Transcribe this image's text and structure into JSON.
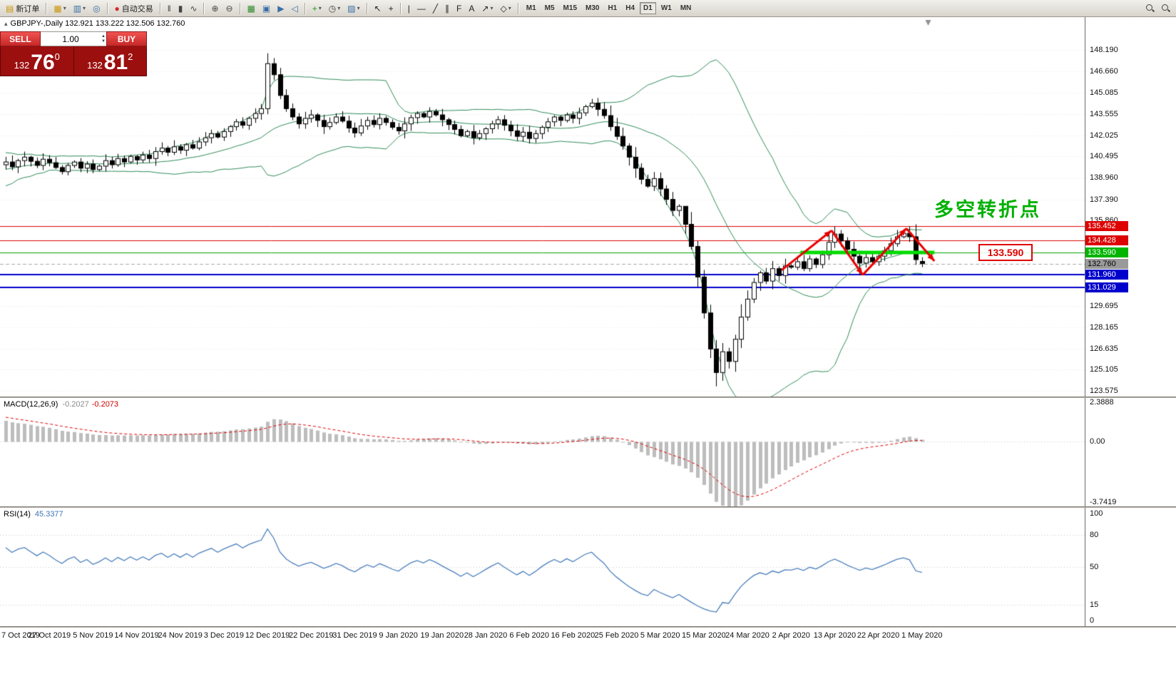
{
  "toolbar": {
    "caret_glyph": "▾",
    "groups": [
      {
        "items": [
          {
            "name": "new-order-button",
            "glyph": "▤",
            "color": "#c8960c",
            "label": "新订单"
          }
        ]
      },
      {
        "items": [
          {
            "name": "new-chart-icon",
            "glyph": "▦",
            "color": "#c8960c",
            "caret": true
          },
          {
            "name": "profiles-icon",
            "glyph": "▥",
            "color": "#3a6ea5",
            "caret": true
          },
          {
            "name": "refresh-icon",
            "glyph": "◎",
            "color": "#3a6ea5"
          }
        ]
      },
      {
        "items": [
          {
            "name": "autotrading-button",
            "glyph": "●",
            "color": "#d42a2a",
            "label": "自动交易"
          }
        ]
      },
      {
        "items": [
          {
            "name": "bar-chart-icon",
            "glyph": "‖",
            "color": "#444444"
          },
          {
            "name": "candlestick-chart-icon",
            "glyph": "▮",
            "color": "#444444"
          },
          {
            "name": "line-chart-icon",
            "glyph": "∿",
            "color": "#444444"
          }
        ]
      },
      {
        "items": [
          {
            "name": "zoom-in-icon",
            "glyph": "⊕",
            "color": "#444444"
          },
          {
            "name": "zoom-out-icon",
            "glyph": "⊖",
            "color": "#444444"
          }
        ]
      },
      {
        "items": [
          {
            "name": "grid-icon",
            "glyph": "▦",
            "color": "#2e8b2e"
          },
          {
            "name": "tile-windows-icon",
            "glyph": "▣",
            "color": "#3a6ea5"
          },
          {
            "name": "auto-scroll-icon",
            "glyph": "▶",
            "color": "#3a6ea5"
          },
          {
            "name": "chart-shift-icon",
            "glyph": "◁",
            "color": "#3a6ea5"
          }
        ]
      },
      {
        "items": [
          {
            "name": "indicators-icon",
            "glyph": "+",
            "color": "#1d9e1d",
            "caret": true
          },
          {
            "name": "periods-icon",
            "glyph": "◷",
            "color": "#444444",
            "caret": true
          },
          {
            "name": "templates-icon",
            "glyph": "▨",
            "color": "#3a6ea5",
            "caret": true
          }
        ]
      },
      {
        "items": [
          {
            "name": "cursor-icon",
            "glyph": "↖",
            "color": "#222222"
          },
          {
            "name": "crosshair-icon",
            "glyph": "+",
            "color": "#222222"
          }
        ]
      },
      {
        "items": [
          {
            "name": "vertical-line-icon",
            "glyph": "|",
            "color": "#222222"
          },
          {
            "name": "horizontal-line-icon",
            "glyph": "—",
            "color": "#222222"
          },
          {
            "name": "trendline-icon",
            "glyph": "╱",
            "color": "#222222"
          },
          {
            "name": "channel-icon",
            "glyph": "∥",
            "color": "#222222"
          },
          {
            "name": "fibonacci-icon",
            "glyph": "F",
            "color": "#222222"
          },
          {
            "name": "text-icon",
            "glyph": "A",
            "color": "#222222"
          },
          {
            "name": "arrows-icon",
            "glyph": "↗",
            "color": "#222222",
            "caret": true
          },
          {
            "name": "shapes-icon",
            "glyph": "◇",
            "color": "#222222",
            "caret": true
          }
        ]
      }
    ],
    "timeframes": [
      "M1",
      "M5",
      "M15",
      "M30",
      "H1",
      "H4",
      "D1",
      "W1",
      "MN"
    ],
    "active_timeframe": "D1",
    "right_icons": [
      "search-chart-button",
      "search-symbol-button"
    ]
  },
  "trade_panel": {
    "sell_label": "SELL",
    "buy_label": "BUY",
    "volume": "1.00",
    "spin_up_glyph": "▲",
    "spin_down_glyph": "▼",
    "sell_price": {
      "prefix": "132",
      "big": "76",
      "sup": "0"
    },
    "buy_price": {
      "prefix": "132",
      "big": "81",
      "sup": "2"
    }
  },
  "chart": {
    "symbol_marker": "▴",
    "title_line": "GBPJPY-,Daily  132.921 133.222 132.506 132.760",
    "annotation": "多空转折点",
    "callout": "133.590"
  },
  "macd_panel": {
    "name": "MACD(12,26,9)",
    "value_main": "-0.2027",
    "value_signal": "-0.2073",
    "range": [
      -3.7419,
      2.3888
    ],
    "axis_labels": [
      {
        "v": 2.3888,
        "t": "2.3888"
      },
      {
        "v": 0,
        "t": "0.00"
      },
      {
        "v": -3.7419,
        "t": "-3.7419"
      }
    ],
    "histogram_color": "#bdbdbd",
    "signal_color": "#dd0000"
  },
  "rsi_panel": {
    "name": "RSI(14)",
    "value": "45.3377",
    "axis_labels": [
      {
        "v": 100,
        "t": "100"
      },
      {
        "v": 80,
        "t": "80"
      },
      {
        "v": 50,
        "t": "50"
      },
      {
        "v": 15,
        "t": "15"
      },
      {
        "v": 0,
        "t": "0"
      }
    ],
    "levels": [
      80,
      50,
      15
    ],
    "line_color": "#4a7ebb"
  },
  "chart_data": {
    "type": "candlestick",
    "symbol": "GBPJPY-",
    "timeframe": "Daily",
    "last_ohlc": {
      "open": 132.921,
      "high": 133.222,
      "low": 132.506,
      "close": 132.76
    },
    "candle_colors": {
      "up": "#ffffff",
      "down": "#000000",
      "outline": "#000000"
    },
    "price_ticks": [
      148.19,
      146.66,
      145.085,
      143.555,
      142.025,
      140.495,
      138.96,
      137.39,
      135.86,
      129.695,
      128.165,
      126.635,
      125.105,
      123.575
    ],
    "price_badges": [
      {
        "price": 135.452,
        "color": "#dd0000",
        "text_color": "#ffffff"
      },
      {
        "price": 134.428,
        "color": "#dd0000",
        "text_color": "#ffffff"
      },
      {
        "price": 133.59,
        "color": "#00b400",
        "text_color": "#ffffff"
      },
      {
        "price": 132.76,
        "color": "#9a9a9a",
        "text_color": "#000000"
      },
      {
        "price": 131.96,
        "color": "#0000cc",
        "text_color": "#ffffff"
      },
      {
        "price": 131.029,
        "color": "#0000cc",
        "text_color": "#ffffff"
      }
    ],
    "horizontal_lines": [
      {
        "price": 135.452,
        "color": "#dd0000",
        "width": 1
      },
      {
        "price": 134.428,
        "color": "#dd0000",
        "width": 1
      },
      {
        "price": 133.59,
        "color": "#00a000",
        "width": 1
      },
      {
        "price": 132.76,
        "color": "#aaaaaa",
        "width": 1,
        "dash": true
      },
      {
        "price": 131.96,
        "color": "#0000cc",
        "width": 2
      },
      {
        "price": 131.029,
        "color": "#0000cc",
        "width": 2
      }
    ],
    "highlight_segment": {
      "price": 133.59,
      "from_bar": 127.5,
      "to_bar": 149,
      "color": "#00dc00",
      "width": 5
    },
    "trend_arrows": [
      {
        "from": [
          124.5,
          132.3
        ],
        "to": [
          132.5,
          135.15
        ]
      },
      {
        "from": [
          132.5,
          135.15
        ],
        "to": [
          137.5,
          131.95
        ]
      },
      {
        "from": [
          137.5,
          131.95
        ],
        "to": [
          144.5,
          135.3
        ]
      },
      {
        "from": [
          144.5,
          135.3
        ],
        "to": [
          149.0,
          132.95
        ]
      }
    ],
    "arrow_color": "#e80000",
    "bollinger": {
      "period": 20,
      "deviation": 2,
      "color": "#2e8b57"
    },
    "bars_per_date_label": 7,
    "date_labels": [
      "7 Oct 2019",
      "27 Oct 2019",
      "5 Nov 2019",
      "14 Nov 2019",
      "24 Nov 2019",
      "3 Dec 2019",
      "12 Dec 2019",
      "22 Dec 2019",
      "31 Dec 2019",
      "9 Jan 2020",
      "19 Jan 2020",
      "28 Jan 2020",
      "6 Feb 2020",
      "16 Feb 2020",
      "25 Feb 2020",
      "5 Mar 2020",
      "15 Mar 2020",
      "24 Mar 2020",
      "2 Apr 2020",
      "13 Apr 2020",
      "22 Apr 2020",
      "1 May 2020"
    ],
    "warmup_closes": [
      131.0,
      131.5,
      131.2,
      131.8,
      132.3,
      132.0,
      132.6,
      133.1,
      132.8,
      133.3,
      133.0,
      133.6,
      134.1,
      133.8,
      134.4,
      135.0,
      135.6,
      136.2,
      136.8,
      137.4,
      138.0,
      138.5,
      138.2,
      138.8,
      139.2,
      138.9,
      139.4,
      139.1,
      139.6,
      139.9,
      139.5,
      140.0,
      139.7,
      140.1,
      139.8,
      140.3,
      140.0,
      140.4,
      140.1,
      139.9
    ],
    "closes": [
      140.1,
      139.75,
      140.2,
      140.45,
      140.15,
      139.85,
      140.3,
      140.05,
      139.7,
      139.4,
      139.85,
      140.1,
      139.65,
      139.95,
      139.55,
      139.8,
      140.2,
      139.9,
      140.35,
      140.1,
      140.5,
      140.25,
      140.6,
      140.35,
      140.85,
      141.1,
      140.8,
      141.2,
      140.95,
      141.35,
      141.1,
      141.55,
      141.85,
      142.15,
      141.9,
      142.3,
      142.65,
      143.0,
      142.75,
      143.25,
      143.6,
      143.95,
      147.2,
      146.4,
      144.9,
      143.95,
      143.35,
      142.85,
      143.25,
      143.5,
      143.1,
      142.65,
      142.95,
      143.35,
      143.05,
      142.55,
      142.2,
      142.7,
      143.1,
      142.8,
      143.25,
      142.95,
      142.6,
      142.35,
      142.85,
      143.3,
      143.6,
      143.35,
      143.75,
      143.5,
      143.15,
      142.8,
      142.45,
      142.0,
      142.3,
      141.85,
      142.15,
      142.5,
      142.85,
      143.15,
      142.75,
      142.35,
      141.95,
      142.25,
      141.8,
      142.15,
      142.6,
      143.0,
      143.35,
      143.1,
      143.5,
      143.25,
      143.65,
      144.1,
      144.35,
      143.9,
      143.45,
      142.65,
      141.95,
      141.25,
      140.45,
      139.65,
      138.85,
      138.35,
      138.9,
      138.15,
      137.4,
      136.6,
      136.9,
      135.6,
      134.0,
      131.8,
      129.2,
      126.6,
      124.9,
      126.4,
      125.7,
      127.3,
      128.9,
      130.2,
      131.4,
      132.1,
      131.5,
      132.4,
      131.9,
      132.6,
      132.5,
      132.9,
      132.4,
      133.1,
      132.7,
      133.4,
      134.3,
      134.9,
      134.4,
      133.8,
      133.3,
      132.8,
      133.2,
      132.9,
      133.3,
      133.7,
      134.2,
      134.7,
      134.95,
      134.7,
      133.05,
      132.76
    ],
    "bar_overrides": {
      "42": {
        "h": 147.95,
        "l": 143.55
      },
      "43": {
        "h": 147.6
      },
      "109": {
        "h": 136.6
      },
      "114": {
        "l": 123.9
      },
      "115": {
        "l": 124.3
      },
      "133": {
        "h": 135.452
      },
      "137": {
        "l": 131.95
      },
      "145": {
        "h": 135.452
      },
      "147": {
        "o": 132.921,
        "h": 133.222,
        "l": 132.506,
        "c": 132.76
      }
    }
  }
}
